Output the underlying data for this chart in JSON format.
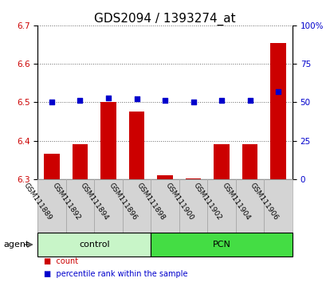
{
  "title": "GDS2094 / 1393274_at",
  "samples": [
    "GSM111889",
    "GSM111892",
    "GSM111894",
    "GSM111896",
    "GSM111898",
    "GSM111900",
    "GSM111902",
    "GSM111904",
    "GSM111906"
  ],
  "red_values": [
    6.365,
    6.39,
    6.5,
    6.475,
    6.31,
    6.302,
    6.39,
    6.39,
    6.655
  ],
  "blue_values": [
    50,
    51,
    53,
    52,
    51,
    50,
    51,
    51,
    57
  ],
  "baseline": 6.3,
  "ylim_left": [
    6.3,
    6.7
  ],
  "ylim_right": [
    0,
    100
  ],
  "yticks_left": [
    6.3,
    6.4,
    6.5,
    6.6,
    6.7
  ],
  "yticks_right": [
    0,
    25,
    50,
    75,
    100
  ],
  "ytick_labels_right": [
    "0",
    "25",
    "50",
    "75",
    "100%"
  ],
  "groups": [
    {
      "label": "control",
      "start": 0,
      "end": 4,
      "color": "#c8f5c8"
    },
    {
      "label": "PCN",
      "start": 4,
      "end": 9,
      "color": "#44dd44"
    }
  ],
  "agent_label": "agent",
  "legend_count_label": "count",
  "legend_percentile_label": "percentile rank within the sample",
  "bar_color": "#cc0000",
  "dot_color": "#0000cc",
  "bar_width": 0.55,
  "dot_size": 18,
  "title_fontsize": 11,
  "tick_fontsize": 7.5,
  "sample_fontsize": 6.5
}
